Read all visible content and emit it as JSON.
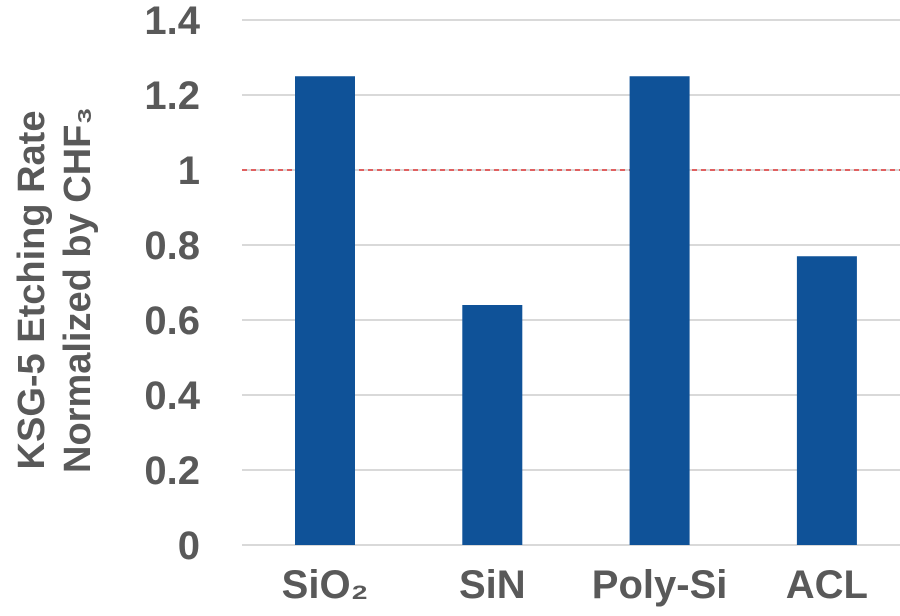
{
  "chart_data": {
    "type": "bar",
    "title": "",
    "xlabel": "",
    "ylabel_lines": [
      "KSG-5 Etching Rate",
      "Normalized by CHF₃"
    ],
    "categories": [
      "SiO₂",
      "SiN",
      "Poly-Si",
      "ACL"
    ],
    "values": [
      1.25,
      0.64,
      1.25,
      0.77
    ],
    "ylim": [
      0,
      1.4
    ],
    "yticks": [
      0,
      0.2,
      0.4,
      0.6,
      0.8,
      1,
      1.2,
      1.4
    ],
    "ytick_labels": [
      "0",
      "0.2",
      "0.4",
      "0.6",
      "0.8",
      "1",
      "1.2",
      "1.4"
    ],
    "grid": true,
    "reference_line": {
      "value": 1.0,
      "style": "dashed",
      "color": "#e06060"
    },
    "bar_color": "#0f5298",
    "grid_color": "#d9d9d9",
    "text_color": "#595959"
  }
}
